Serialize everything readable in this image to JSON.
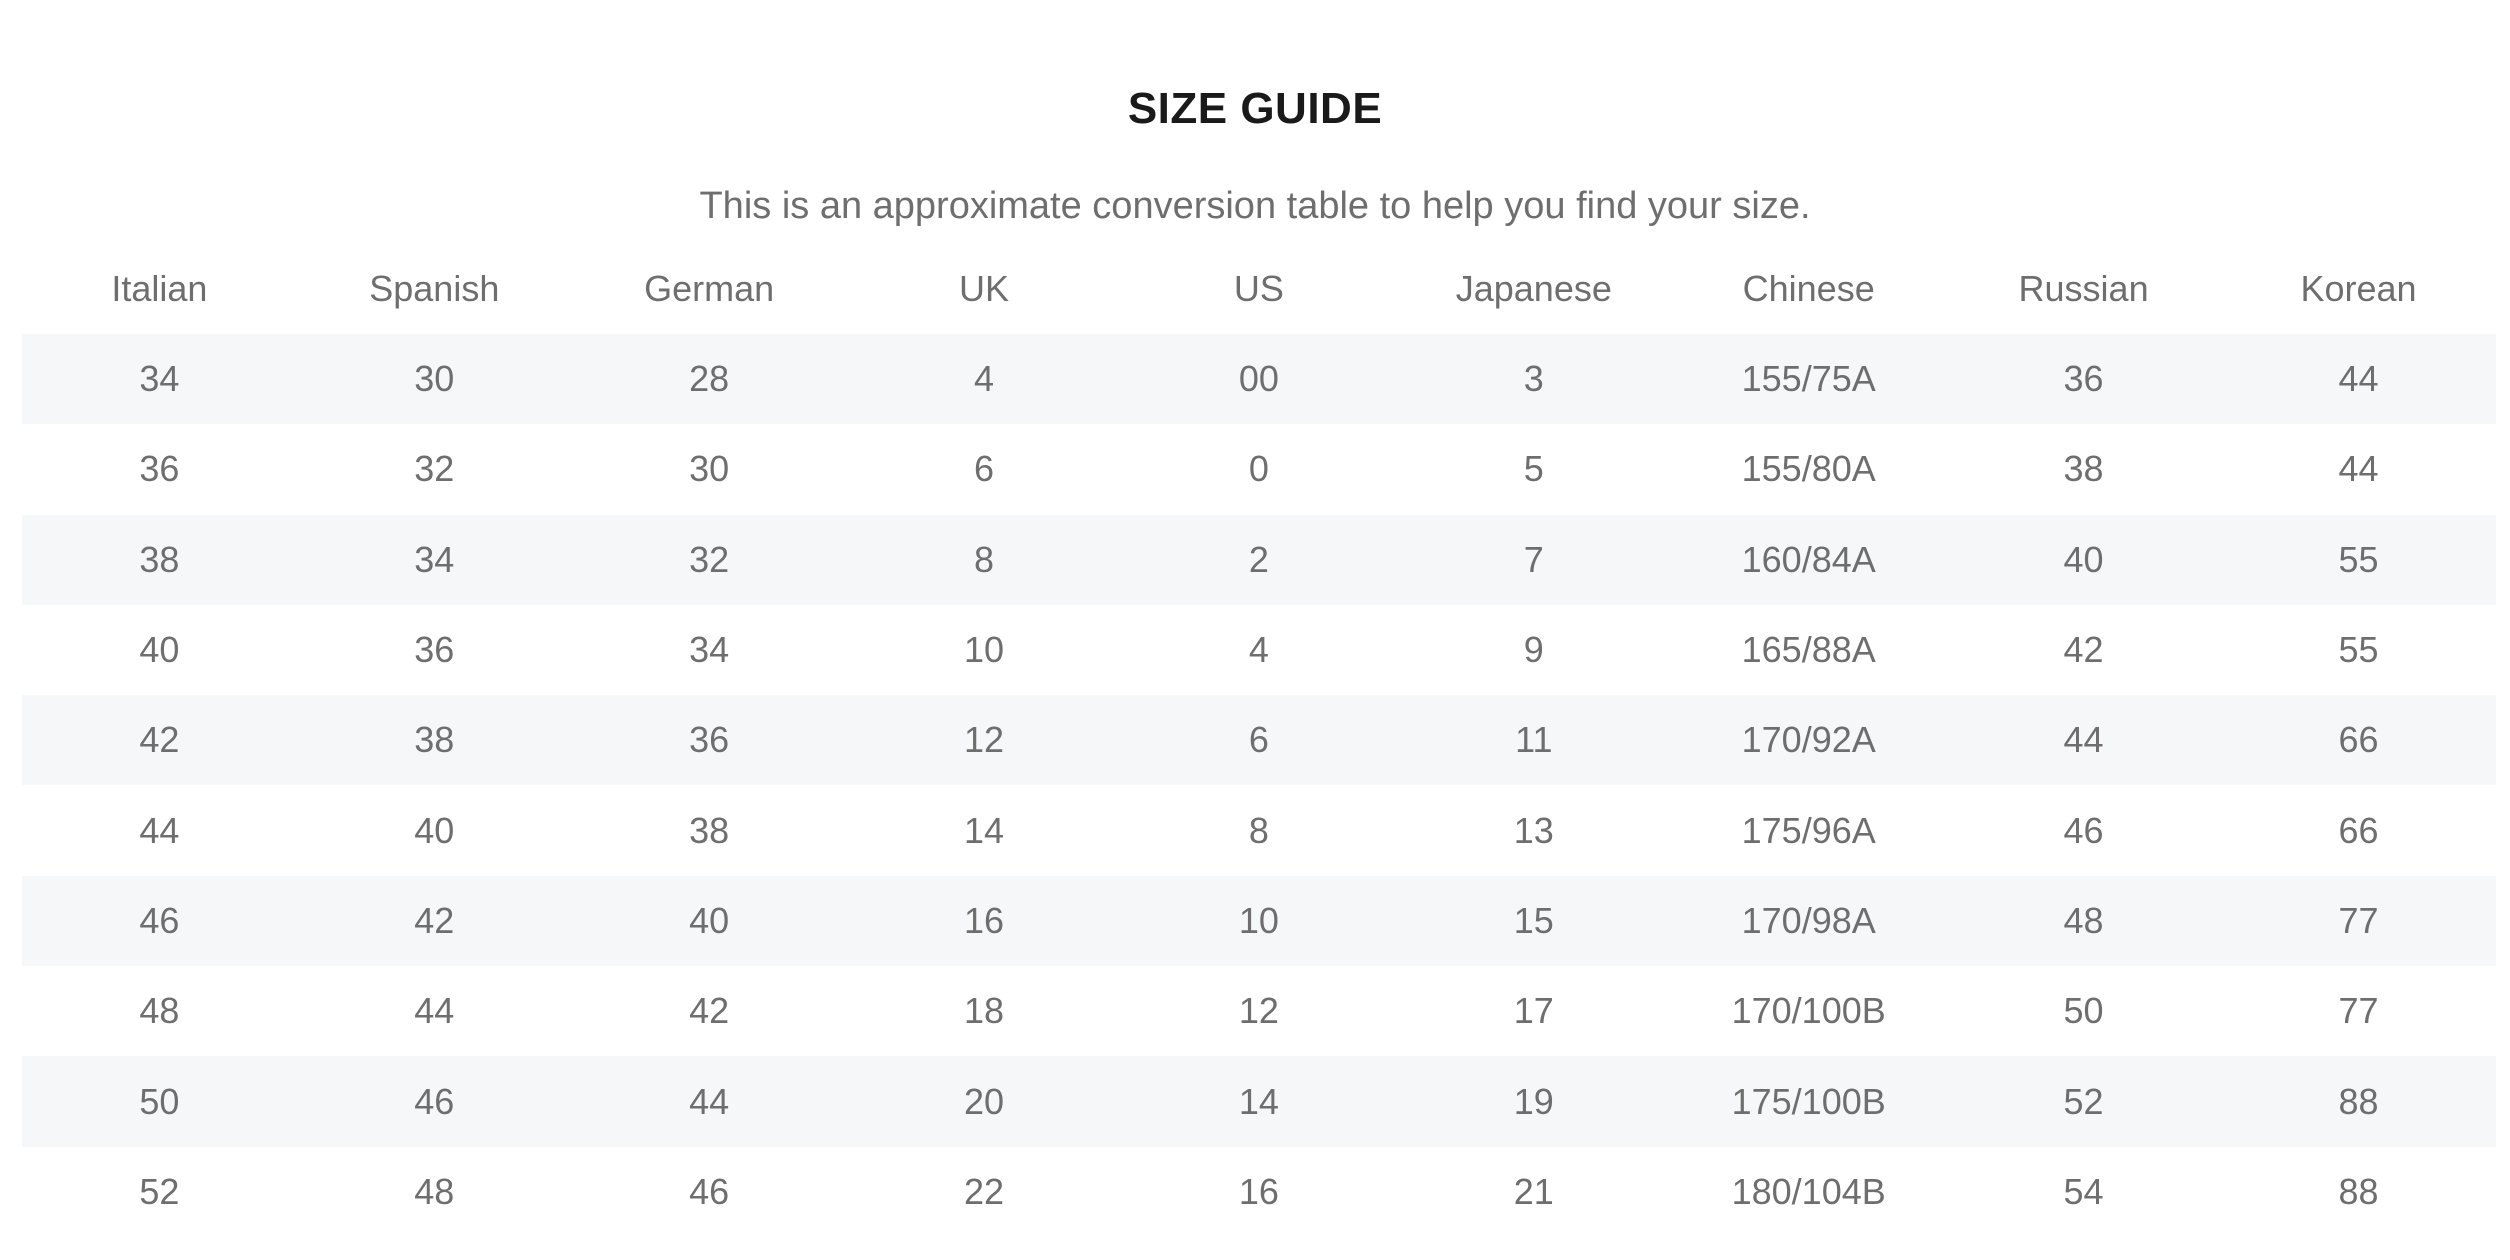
{
  "title": "SIZE GUIDE",
  "subtitle": "This is an approximate conversion table to help you find your size.",
  "table": {
    "headers": [
      "Italian",
      "Spanish",
      "German",
      "UK",
      "US",
      "Japanese",
      "Chinese",
      "Russian",
      "Korean"
    ],
    "rows": [
      [
        "34",
        "30",
        "28",
        "4",
        "00",
        "3",
        "155/75A",
        "36",
        "44"
      ],
      [
        "36",
        "32",
        "30",
        "6",
        "0",
        "5",
        "155/80A",
        "38",
        "44"
      ],
      [
        "38",
        "34",
        "32",
        "8",
        "2",
        "7",
        "160/84A",
        "40",
        "55"
      ],
      [
        "40",
        "36",
        "34",
        "10",
        "4",
        "9",
        "165/88A",
        "42",
        "55"
      ],
      [
        "42",
        "38",
        "36",
        "12",
        "6",
        "11",
        "170/92A",
        "44",
        "66"
      ],
      [
        "44",
        "40",
        "38",
        "14",
        "8",
        "13",
        "175/96A",
        "46",
        "66"
      ],
      [
        "46",
        "42",
        "40",
        "16",
        "10",
        "15",
        "170/98A",
        "48",
        "77"
      ],
      [
        "48",
        "44",
        "42",
        "18",
        "12",
        "17",
        "170/100B",
        "50",
        "77"
      ],
      [
        "50",
        "46",
        "44",
        "20",
        "14",
        "19",
        "175/100B",
        "52",
        "88"
      ],
      [
        "52",
        "48",
        "46",
        "22",
        "16",
        "21",
        "180/104B",
        "54",
        "88"
      ]
    ]
  },
  "colors": {
    "title": "#1a1a1a",
    "text": "#6e6e6e",
    "stripe": "#f6f7f9",
    "background": "#ffffff"
  }
}
